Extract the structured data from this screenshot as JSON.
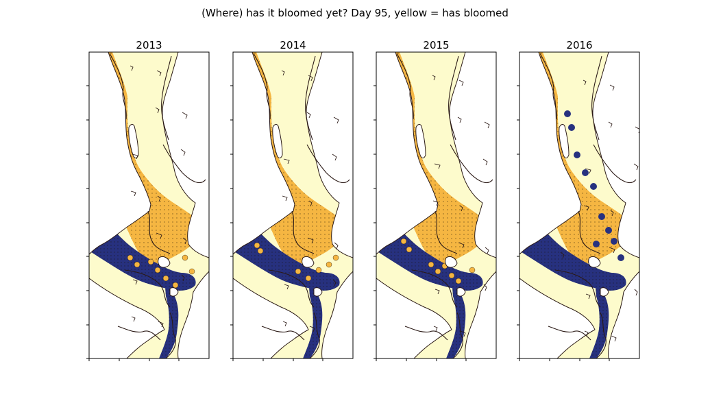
{
  "figure": {
    "title": "(Where) has it bloomed yet? Day 95, yellow = has bloomed"
  },
  "colors": {
    "background": "#fdfbcc",
    "land": "#ffffff",
    "coast": "#2b1a16",
    "bloomed": "#f5b642",
    "not_bloomed": "#27317f"
  },
  "panels": [
    {
      "year": "2013",
      "bloomed_region_share": 0.6
    },
    {
      "year": "2014",
      "bloomed_region_share": 0.62
    },
    {
      "year": "2015",
      "bloomed_region_share": 0.58
    },
    {
      "year": "2016",
      "bloomed_region_share": 0.34
    }
  ]
}
